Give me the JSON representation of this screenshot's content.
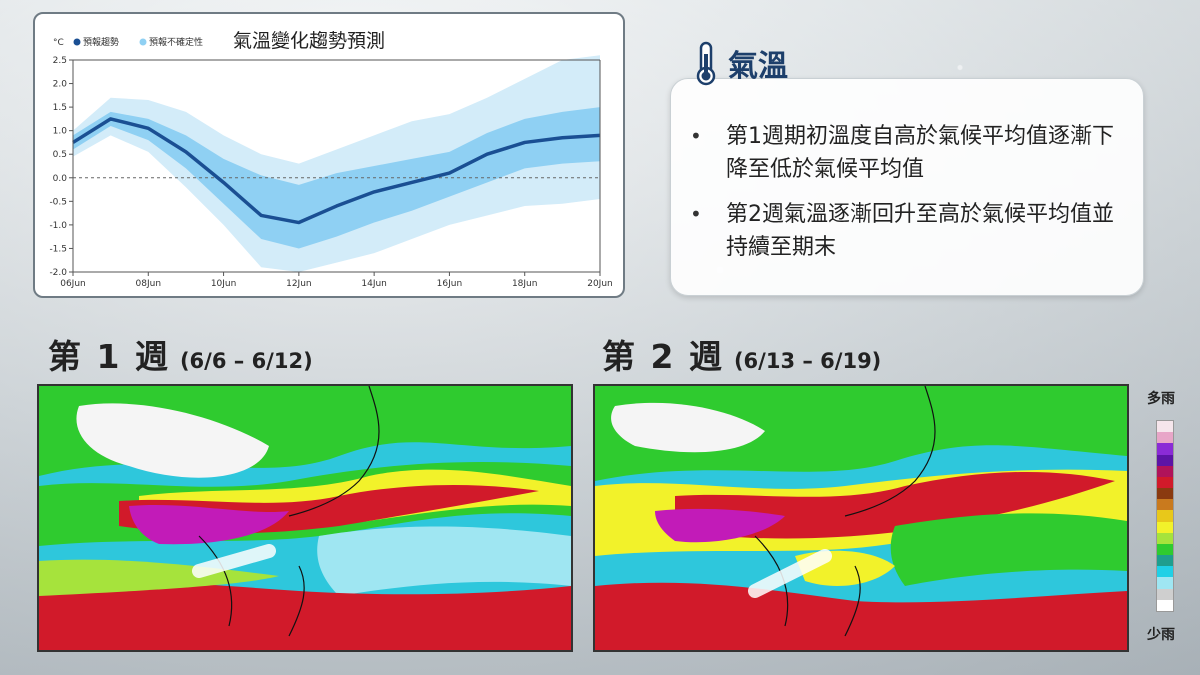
{
  "chart": {
    "title": "氣溫變化趨勢預測",
    "unit": "°C",
    "legend": [
      {
        "label": "預報趨勢",
        "color": "#1a4f93"
      },
      {
        "label": "預報不確定性",
        "color": "#8fd0f3"
      }
    ]
  },
  "chart_data": {
    "type": "line",
    "title": "氣溫變化趨勢預測",
    "ylabel": "°C",
    "ylim": [
      -2.0,
      2.5
    ],
    "yticks": [
      "2.5",
      "2.0",
      "1.5",
      "1.0",
      "0.5",
      "0.0",
      "-0.5",
      "-1.0",
      "-1.5",
      "-2.0"
    ],
    "xticks": [
      "06Jun",
      "08Jun",
      "10Jun",
      "12Jun",
      "14Jun",
      "16Jun",
      "18Jun",
      "20Jun"
    ],
    "x": [
      "06Jun",
      "07Jun",
      "08Jun",
      "09Jun",
      "10Jun",
      "11Jun",
      "12Jun",
      "13Jun",
      "14Jun",
      "15Jun",
      "16Jun",
      "17Jun",
      "18Jun",
      "19Jun",
      "20Jun"
    ],
    "series": [
      {
        "name": "預報趨勢",
        "values": [
          0.75,
          1.25,
          1.05,
          0.55,
          -0.1,
          -0.8,
          -0.95,
          -0.6,
          -0.3,
          -0.1,
          0.1,
          0.5,
          0.75,
          0.85,
          0.9
        ]
      },
      {
        "name": "預報不確定性",
        "upper": [
          0.9,
          1.4,
          1.25,
          0.9,
          0.4,
          0.05,
          -0.15,
          0.1,
          0.25,
          0.4,
          0.55,
          0.95,
          1.25,
          1.4,
          1.5
        ],
        "lower": [
          0.6,
          1.1,
          0.8,
          0.2,
          -0.55,
          -1.3,
          -1.5,
          -1.25,
          -0.95,
          -0.7,
          -0.4,
          -0.1,
          0.2,
          0.3,
          0.35
        ]
      },
      {
        "name": "預報不確定性",
        "upper": [
          1.0,
          1.7,
          1.65,
          1.4,
          0.9,
          0.5,
          0.3,
          0.6,
          0.9,
          1.2,
          1.35,
          1.7,
          2.1,
          2.5,
          2.6
        ],
        "lower": [
          0.45,
          0.9,
          0.55,
          -0.2,
          -1.0,
          -1.9,
          -2.0,
          -1.8,
          -1.6,
          -1.3,
          -1.0,
          -0.8,
          -0.6,
          -0.55,
          -0.45
        ]
      }
    ],
    "grid": false,
    "legend_position": "top-left"
  },
  "info": {
    "heading": "氣溫",
    "bullet_mark": "•",
    "bullets": [
      "第1週期初溫度自高於氣候平均值逐漸下降至低於氣候平均值",
      "第2週氣溫逐漸回升至高於氣候平均值並持續至期末"
    ]
  },
  "weeks": [
    {
      "label": "第 1 週",
      "range": "(6/6 – 6/12)"
    },
    {
      "label": "第 2 週",
      "range": "(6/13 – 6/19)"
    }
  ],
  "precip_legend": {
    "top": "多雨",
    "bottom": "少雨",
    "colors": [
      "#f6e6ec",
      "#e8a6c8",
      "#8a2bd6",
      "#5c14a6",
      "#b0135a",
      "#d11a2a",
      "#8a3a10",
      "#c97a1e",
      "#e8c81a",
      "#f2f22a",
      "#a6e33c",
      "#2fcb2f",
      "#1f9e8e",
      "#20d0e6",
      "#9fe6f2",
      "#cfcfcf",
      "#ffffff"
    ]
  }
}
